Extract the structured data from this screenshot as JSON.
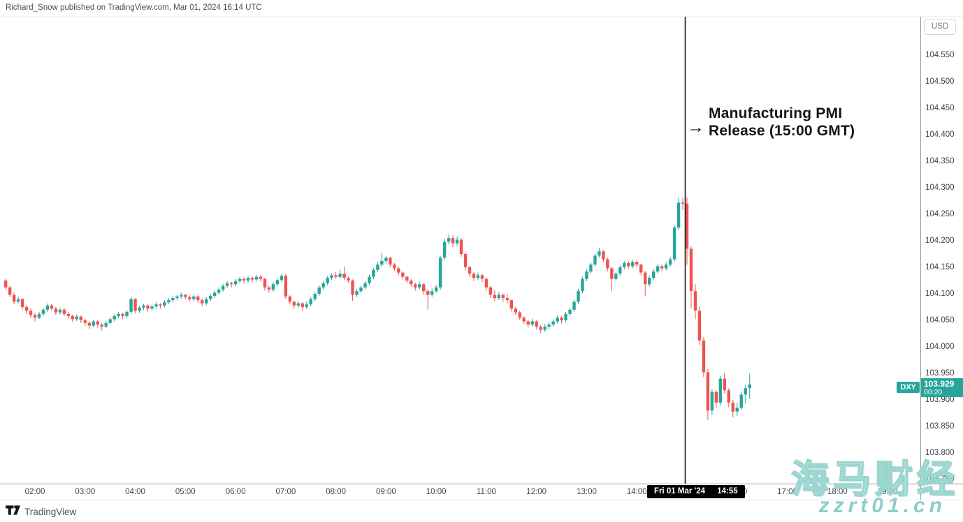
{
  "header": {
    "attribution": "Richard_Snow published on TradingView.com, Mar 01, 2024 16:14 UTC"
  },
  "price_scale": {
    "currency_button": "USD",
    "ticks": [
      "104.550",
      "104.500",
      "104.450",
      "104.400",
      "104.350",
      "104.300",
      "104.250",
      "104.200",
      "104.150",
      "104.100",
      "104.050",
      "104.000",
      "103.950",
      "103.900",
      "103.850",
      "103.800",
      "103.750"
    ]
  },
  "time_scale": {
    "ticks": [
      "02:00",
      "03:00",
      "04:00",
      "05:00",
      "06:00",
      "07:00",
      "08:00",
      "09:00",
      "10:00",
      "11:00",
      "12:00",
      "13:00",
      "14:00",
      "16:00",
      "17:00",
      "18:00",
      "19:00"
    ],
    "tag_date": "Fri 01 Mar '24",
    "tag_time": "14:55"
  },
  "symbol_tag": {
    "symbol": "DXY",
    "last_price": "103.929",
    "countdown": "00:20"
  },
  "annotation": {
    "arrow": "→",
    "line1": "Manufacturing PMI",
    "line2": "Release (15:00 GMT)"
  },
  "watermark": {
    "cjk": "海马财经",
    "domain": "zzrt01.cn"
  },
  "footer": {
    "brand": "TradingView"
  },
  "colors": {
    "up": "#26a69a",
    "down": "#ef5350",
    "event_line": "#16181d",
    "axis_line": "#9598a1",
    "separator": "#e7e9ee"
  },
  "chart_data": {
    "type": "candlestick",
    "symbol": "DXY",
    "unit": "USD",
    "interval": "5m",
    "start_time": "01:25",
    "interval_minutes": 5,
    "y_axis": {
      "min": 103.75,
      "max": 104.55,
      "step": 0.05,
      "visible_range": [
        103.742,
        104.622
      ]
    },
    "x_axis": {
      "first_tick": "02:00",
      "last_tick": "19:00",
      "step_hours": 1
    },
    "grid": "off",
    "legend_position": "none",
    "event_line": {
      "time": "15:00",
      "label": "Manufacturing PMI Release (15:00 GMT)"
    },
    "crosshair_time": "Fri 01 Mar '24 14:55",
    "last_price": 103.929,
    "bar_countdown": "00:20",
    "candles_format": [
      "open",
      "high",
      "low",
      "close"
    ],
    "candles": [
      [
        104.125,
        104.128,
        104.108,
        104.112
      ],
      [
        104.112,
        104.115,
        104.094,
        104.098
      ],
      [
        104.098,
        104.102,
        104.08,
        104.085
      ],
      [
        104.085,
        104.094,
        104.082,
        104.09
      ],
      [
        104.09,
        104.092,
        104.07,
        104.075
      ],
      [
        104.075,
        104.079,
        104.062,
        104.068
      ],
      [
        104.068,
        104.072,
        104.054,
        104.06
      ],
      [
        104.06,
        104.064,
        104.048,
        104.055
      ],
      [
        104.055,
        104.066,
        104.052,
        104.062
      ],
      [
        104.062,
        104.074,
        104.058,
        104.07
      ],
      [
        104.07,
        104.082,
        104.066,
        104.078
      ],
      [
        104.078,
        104.081,
        104.068,
        104.072
      ],
      [
        104.072,
        104.075,
        104.06,
        104.065
      ],
      [
        104.065,
        104.074,
        104.061,
        104.07
      ],
      [
        104.07,
        104.073,
        104.058,
        104.062
      ],
      [
        104.062,
        104.066,
        104.053,
        104.058
      ],
      [
        104.058,
        104.061,
        104.047,
        104.052
      ],
      [
        104.052,
        104.061,
        104.049,
        104.057
      ],
      [
        104.057,
        104.059,
        104.045,
        104.05
      ],
      [
        104.05,
        104.053,
        104.04,
        104.045
      ],
      [
        104.045,
        104.048,
        104.034,
        104.04
      ],
      [
        104.04,
        104.051,
        104.037,
        104.048
      ],
      [
        104.048,
        104.05,
        104.036,
        104.042
      ],
      [
        104.042,
        104.045,
        104.031,
        104.038
      ],
      [
        104.038,
        104.049,
        104.035,
        104.045
      ],
      [
        104.045,
        104.056,
        104.042,
        104.052
      ],
      [
        104.052,
        104.061,
        104.048,
        104.058
      ],
      [
        104.058,
        104.066,
        104.054,
        104.062
      ],
      [
        104.062,
        104.064,
        104.052,
        104.058
      ],
      [
        104.058,
        104.069,
        104.054,
        104.066
      ],
      [
        104.066,
        104.094,
        104.062,
        104.09
      ],
      [
        104.09,
        104.092,
        104.063,
        104.068
      ],
      [
        104.068,
        104.077,
        104.064,
        104.074
      ],
      [
        104.074,
        104.081,
        104.07,
        104.078
      ],
      [
        104.078,
        104.08,
        104.066,
        104.072
      ],
      [
        104.072,
        104.08,
        104.068,
        104.076
      ],
      [
        104.076,
        104.084,
        104.072,
        104.08
      ],
      [
        104.08,
        104.082,
        104.072,
        104.078
      ],
      [
        104.078,
        104.088,
        104.074,
        104.084
      ],
      [
        104.084,
        104.092,
        104.08,
        104.088
      ],
      [
        104.088,
        104.096,
        104.084,
        104.092
      ],
      [
        104.092,
        104.099,
        104.088,
        104.095
      ],
      [
        104.095,
        104.102,
        104.091,
        104.098
      ],
      [
        104.098,
        104.1,
        104.089,
        104.094
      ],
      [
        104.094,
        104.097,
        104.085,
        104.09
      ],
      [
        104.09,
        104.099,
        104.086,
        104.095
      ],
      [
        104.095,
        104.097,
        104.083,
        104.088
      ],
      [
        104.088,
        104.091,
        104.077,
        104.082
      ],
      [
        104.082,
        104.094,
        104.078,
        104.09
      ],
      [
        104.09,
        104.1,
        104.086,
        104.096
      ],
      [
        104.096,
        104.106,
        104.092,
        104.102
      ],
      [
        104.102,
        104.112,
        104.098,
        104.108
      ],
      [
        104.108,
        104.119,
        104.104,
        104.115
      ],
      [
        104.115,
        104.124,
        104.111,
        104.12
      ],
      [
        104.12,
        104.123,
        104.112,
        104.118
      ],
      [
        104.118,
        104.128,
        104.114,
        104.124
      ],
      [
        104.124,
        104.132,
        104.12,
        104.128
      ],
      [
        104.128,
        104.131,
        104.119,
        104.125
      ],
      [
        104.125,
        104.134,
        104.121,
        104.13
      ],
      [
        104.13,
        104.133,
        104.121,
        104.127
      ],
      [
        104.127,
        104.136,
        104.123,
        104.132
      ],
      [
        104.132,
        104.135,
        104.123,
        104.128
      ],
      [
        104.128,
        104.13,
        104.106,
        104.112
      ],
      [
        104.112,
        104.115,
        104.102,
        104.108
      ],
      [
        104.108,
        104.122,
        104.104,
        104.118
      ],
      [
        104.118,
        104.13,
        104.114,
        104.126
      ],
      [
        104.126,
        104.138,
        104.122,
        104.134
      ],
      [
        104.134,
        104.137,
        104.09,
        104.095
      ],
      [
        104.095,
        104.097,
        104.08,
        104.085
      ],
      [
        104.085,
        104.087,
        104.072,
        104.078
      ],
      [
        104.078,
        104.086,
        104.074,
        104.082
      ],
      [
        104.082,
        104.084,
        104.068,
        104.075
      ],
      [
        104.075,
        104.085,
        104.071,
        104.08
      ],
      [
        104.08,
        104.094,
        104.076,
        104.09
      ],
      [
        104.09,
        104.104,
        104.086,
        104.1
      ],
      [
        104.1,
        104.116,
        104.096,
        104.112
      ],
      [
        104.112,
        104.124,
        104.108,
        104.12
      ],
      [
        104.12,
        104.134,
        104.116,
        104.13
      ],
      [
        104.13,
        104.139,
        104.126,
        104.135
      ],
      [
        104.135,
        104.141,
        104.128,
        104.132
      ],
      [
        104.132,
        104.145,
        104.128,
        104.138
      ],
      [
        104.138,
        104.151,
        104.126,
        104.13
      ],
      [
        104.13,
        104.133,
        104.12,
        104.125
      ],
      [
        104.125,
        104.127,
        104.087,
        104.098
      ],
      [
        104.098,
        104.109,
        104.094,
        104.105
      ],
      [
        104.105,
        104.116,
        104.101,
        104.112
      ],
      [
        104.112,
        104.124,
        104.108,
        104.12
      ],
      [
        104.12,
        104.136,
        104.116,
        104.132
      ],
      [
        104.132,
        104.149,
        104.128,
        104.145
      ],
      [
        104.145,
        104.16,
        104.141,
        104.155
      ],
      [
        104.155,
        104.177,
        104.151,
        104.162
      ],
      [
        104.162,
        104.172,
        104.156,
        104.168
      ],
      [
        104.168,
        104.17,
        104.15,
        104.155
      ],
      [
        104.155,
        104.158,
        104.143,
        104.148
      ],
      [
        104.148,
        104.151,
        104.135,
        104.14
      ],
      [
        104.14,
        104.143,
        104.127,
        104.132
      ],
      [
        104.132,
        104.135,
        104.12,
        104.125
      ],
      [
        104.125,
        104.128,
        104.113,
        104.118
      ],
      [
        104.118,
        104.121,
        104.106,
        104.112
      ],
      [
        104.112,
        104.123,
        104.108,
        104.118
      ],
      [
        104.118,
        104.12,
        104.099,
        104.105
      ],
      [
        104.105,
        104.108,
        104.07,
        104.098
      ],
      [
        104.098,
        104.11,
        104.094,
        104.105
      ],
      [
        104.105,
        104.117,
        104.101,
        104.112
      ],
      [
        104.112,
        104.172,
        104.108,
        104.168
      ],
      [
        104.168,
        104.204,
        104.164,
        104.198
      ],
      [
        104.198,
        104.212,
        104.193,
        104.205
      ],
      [
        104.205,
        104.21,
        104.188,
        104.195
      ],
      [
        104.195,
        104.208,
        104.19,
        104.202
      ],
      [
        104.202,
        104.205,
        104.17,
        104.175
      ],
      [
        104.175,
        104.178,
        104.144,
        104.15
      ],
      [
        104.15,
        104.153,
        104.132,
        104.138
      ],
      [
        104.138,
        104.141,
        104.124,
        104.13
      ],
      [
        104.13,
        104.14,
        104.126,
        104.135
      ],
      [
        104.135,
        104.138,
        104.122,
        104.128
      ],
      [
        104.128,
        104.131,
        104.106,
        104.112
      ],
      [
        104.112,
        104.115,
        104.092,
        104.098
      ],
      [
        104.098,
        104.107,
        104.086,
        104.092
      ],
      [
        104.092,
        104.104,
        104.088,
        104.098
      ],
      [
        104.098,
        104.101,
        104.085,
        104.092
      ],
      [
        104.092,
        104.1,
        104.082,
        104.088
      ],
      [
        104.088,
        104.09,
        104.067,
        104.072
      ],
      [
        104.072,
        104.075,
        104.06,
        104.065
      ],
      [
        104.065,
        104.068,
        104.05,
        104.055
      ],
      [
        104.055,
        104.058,
        104.043,
        104.048
      ],
      [
        104.048,
        104.051,
        104.036,
        104.042
      ],
      [
        104.042,
        104.053,
        104.038,
        104.048
      ],
      [
        104.048,
        104.05,
        104.033,
        104.038
      ],
      [
        104.038,
        104.041,
        104.026,
        104.032
      ],
      [
        104.032,
        104.043,
        104.028,
        104.038
      ],
      [
        104.038,
        104.047,
        104.033,
        104.042
      ],
      [
        104.042,
        104.052,
        104.038,
        104.048
      ],
      [
        104.048,
        104.059,
        104.044,
        104.055
      ],
      [
        104.055,
        104.058,
        104.044,
        104.05
      ],
      [
        104.05,
        104.066,
        104.046,
        104.062
      ],
      [
        104.062,
        104.074,
        104.058,
        104.07
      ],
      [
        104.07,
        104.089,
        104.066,
        104.085
      ],
      [
        104.085,
        104.109,
        104.081,
        104.105
      ],
      [
        104.105,
        104.132,
        104.101,
        104.128
      ],
      [
        104.128,
        104.146,
        104.124,
        104.142
      ],
      [
        104.142,
        104.159,
        104.138,
        104.155
      ],
      [
        104.155,
        104.176,
        104.151,
        104.172
      ],
      [
        104.172,
        104.187,
        104.168,
        104.18
      ],
      [
        104.18,
        104.182,
        104.16,
        104.165
      ],
      [
        104.165,
        104.168,
        104.143,
        104.148
      ],
      [
        104.148,
        104.151,
        104.105,
        104.128
      ],
      [
        104.128,
        104.142,
        104.124,
        104.138
      ],
      [
        104.138,
        104.154,
        104.134,
        104.15
      ],
      [
        104.15,
        104.162,
        104.146,
        104.158
      ],
      [
        104.158,
        104.161,
        104.147,
        104.152
      ],
      [
        104.152,
        104.164,
        104.148,
        104.16
      ],
      [
        104.16,
        104.163,
        104.15,
        104.155
      ],
      [
        104.155,
        104.157,
        104.135,
        104.14
      ],
      [
        104.14,
        104.143,
        104.095,
        104.118
      ],
      [
        104.118,
        104.134,
        104.114,
        104.13
      ],
      [
        104.13,
        104.146,
        104.126,
        104.142
      ],
      [
        104.142,
        104.156,
        104.138,
        104.152
      ],
      [
        104.152,
        104.155,
        104.142,
        104.148
      ],
      [
        104.148,
        104.16,
        104.144,
        104.155
      ],
      [
        104.155,
        104.17,
        104.151,
        104.165
      ],
      [
        104.165,
        104.23,
        104.161,
        104.225
      ],
      [
        104.225,
        104.282,
        104.221,
        104.272
      ],
      [
        104.272,
        104.281,
        104.258,
        104.27
      ],
      [
        104.27,
        104.282,
        104.155,
        104.185
      ],
      [
        104.185,
        104.19,
        104.072,
        104.105
      ],
      [
        104.105,
        104.118,
        104.052,
        104.068
      ],
      [
        104.068,
        104.075,
        104.003,
        104.012
      ],
      [
        104.012,
        104.018,
        103.943,
        103.952
      ],
      [
        103.952,
        103.958,
        103.862,
        103.88
      ],
      [
        103.88,
        103.92,
        103.872,
        103.915
      ],
      [
        103.915,
        103.918,
        103.885,
        103.895
      ],
      [
        103.895,
        103.945,
        103.889,
        103.94
      ],
      [
        103.94,
        103.951,
        103.912,
        103.918
      ],
      [
        103.918,
        103.922,
        103.886,
        103.895
      ],
      [
        103.895,
        103.9,
        103.867,
        103.878
      ],
      [
        103.878,
        103.895,
        103.87,
        103.885
      ],
      [
        103.885,
        103.915,
        103.881,
        103.91
      ],
      [
        103.91,
        103.928,
        103.893,
        103.922
      ],
      [
        103.922,
        103.95,
        103.902,
        103.929
      ]
    ]
  }
}
